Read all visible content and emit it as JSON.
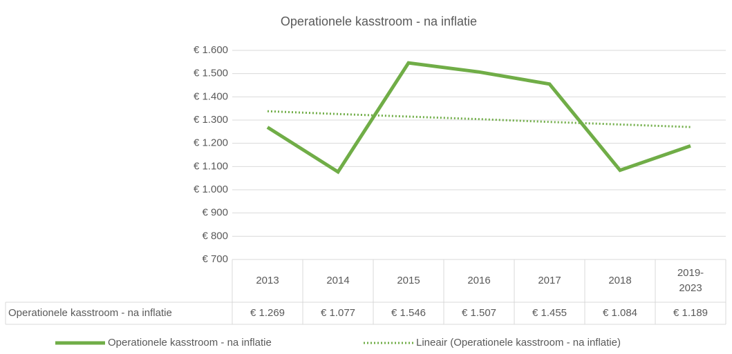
{
  "chart_data": {
    "type": "line",
    "title": "Operationele kasstroom - na inflatie",
    "categories": [
      "2013",
      "2014",
      "2015",
      "2016",
      "2017",
      "2018",
      "2019-2023"
    ],
    "series": [
      {
        "name": "Operationele kasstroom - na inflatie",
        "color": "#70ad47",
        "values": [
          1269,
          1077,
          1546,
          1507,
          1455,
          1084,
          1189
        ],
        "value_labels": [
          "€ 1.269",
          "€ 1.077",
          "€ 1.546",
          "€ 1.507",
          "€ 1.455",
          "€ 1.084",
          "€ 1.189"
        ]
      },
      {
        "name": "Lineair (Operationele kasstroom - na inflatie)",
        "color": "#70ad47",
        "dashed": true,
        "values": [
          1338,
          1326,
          1315,
          1304,
          1292,
          1281,
          1270
        ]
      }
    ],
    "ylim": [
      700,
      1600
    ],
    "yticks": [
      {
        "value": 700,
        "label": "€ 700"
      },
      {
        "value": 800,
        "label": "€ 800"
      },
      {
        "value": 900,
        "label": "€ 900"
      },
      {
        "value": 1000,
        "label": "€ 1.000"
      },
      {
        "value": 1100,
        "label": "€ 1.100"
      },
      {
        "value": 1200,
        "label": "€ 1.200"
      },
      {
        "value": 1300,
        "label": "€ 1.300"
      },
      {
        "value": 1400,
        "label": "€ 1.400"
      },
      {
        "value": 1500,
        "label": "€ 1.500"
      },
      {
        "value": 1600,
        "label": "€ 1.600"
      }
    ],
    "grid": true
  }
}
